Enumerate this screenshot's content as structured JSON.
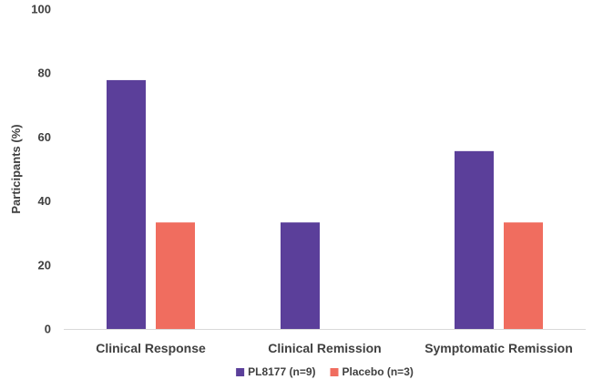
{
  "chart_data": {
    "type": "bar",
    "title": "",
    "xlabel": "",
    "ylabel": "Participants (%)",
    "ylim": [
      0,
      100
    ],
    "yticks": [
      0,
      20,
      40,
      60,
      80,
      100
    ],
    "grid": false,
    "legend_position": "bottom",
    "categories": [
      "Clinical Response",
      "Clinical Remission",
      "Symptomatic Remission"
    ],
    "series": [
      {
        "name": "PL8177 (n=9)",
        "color": "#5b3f9a",
        "values": [
          77.8,
          33.3,
          55.6
        ]
      },
      {
        "name": "Placebo (n=3)",
        "color": "#f06d5f",
        "values": [
          33.3,
          0,
          33.3
        ]
      }
    ]
  }
}
